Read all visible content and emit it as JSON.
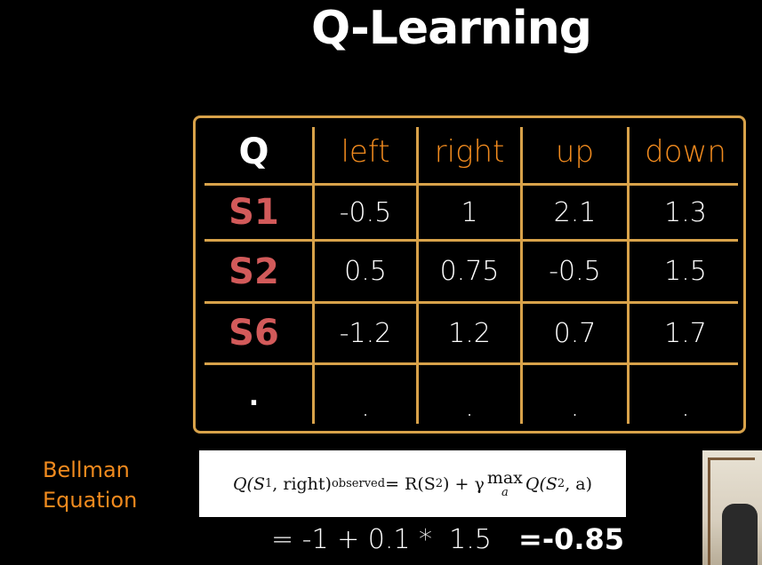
{
  "title": "Q-Learning",
  "table": {
    "corner": "Q",
    "actions": [
      "left",
      "right",
      "up",
      "down"
    ],
    "rows": [
      {
        "state": "S1",
        "values": [
          "-0.5",
          "1",
          "2.1",
          "1.3"
        ]
      },
      {
        "state": "S2",
        "values": [
          "0.5",
          "0.75",
          "-0.5",
          "1.5"
        ]
      },
      {
        "state": "S6",
        "values": [
          "-1.2",
          "1.2",
          "0.7",
          "1.7"
        ]
      },
      {
        "state": ".",
        "values": [
          ".",
          ".",
          ".",
          "."
        ]
      }
    ]
  },
  "bellman": {
    "line1": "Bellman",
    "line2": "Equation"
  },
  "formula": {
    "lhs_q": "Q(S",
    "lhs_sub1": "1",
    "lhs_arg": ", right)",
    "lhs_sub_observed": "observed",
    "eq": " = R(S",
    "rhs_sub2": "2",
    "rhs_mid": ") + γ ",
    "max": "max",
    "max_under": "a",
    "rhs_end_q": " Q(S",
    "rhs_sub2b": "2",
    "rhs_end": ", a)"
  },
  "calc": {
    "expression": "= -1 + 0.1 *  1.5",
    "result": "=-0.85"
  },
  "colors": {
    "accent_orange": "#f08a1e",
    "table_border": "#d8a24a",
    "state_red": "#d25a5a"
  }
}
